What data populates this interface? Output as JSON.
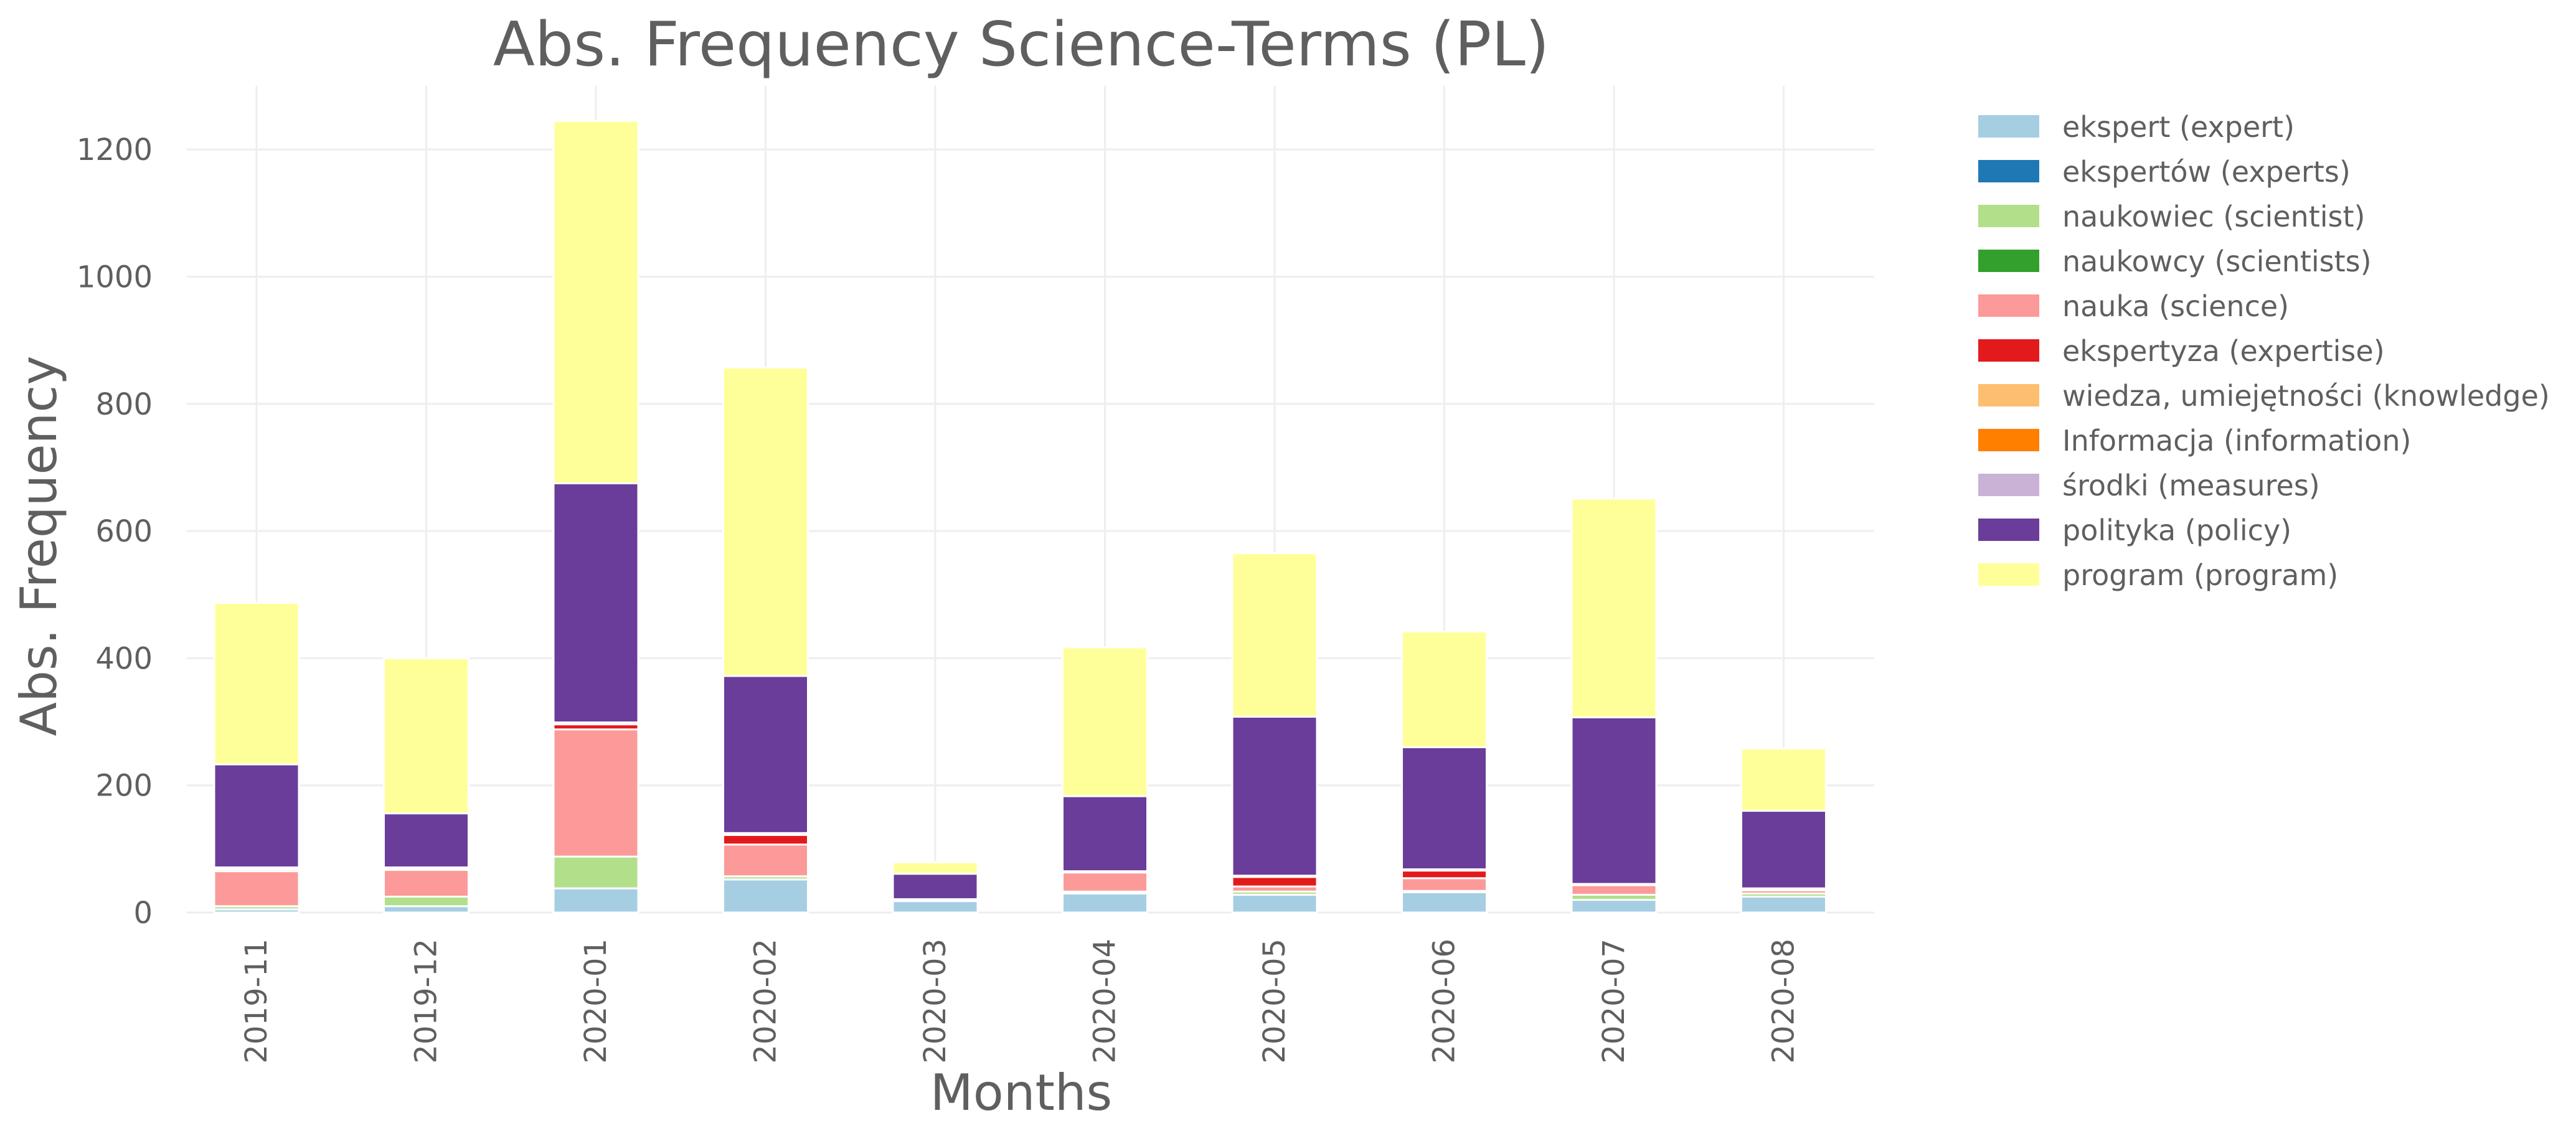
{
  "chart_data": {
    "type": "bar",
    "stacked": true,
    "title": "Abs. Frequency Science-Terms (PL)",
    "xlabel": "Months",
    "ylabel": "Abs. Frequency",
    "ylim": [
      0,
      1300
    ],
    "yticks": [
      0,
      200,
      400,
      600,
      800,
      1000,
      1200
    ],
    "grid": true,
    "legend_position": "outside-right",
    "categories": [
      "2019-11",
      "2019-12",
      "2020-01",
      "2020-02",
      "2020-03",
      "2020-04",
      "2020-05",
      "2020-06",
      "2020-07",
      "2020-08"
    ],
    "series": [
      {
        "name": "ekspert (expert)",
        "color": "#a6cee3",
        "values": [
          5,
          10,
          38,
          52,
          18,
          30,
          28,
          32,
          20,
          25
        ]
      },
      {
        "name": "ekspertów (experts)",
        "color": "#1f78b4",
        "values": [
          0,
          0,
          0,
          0,
          0,
          0,
          0,
          0,
          0,
          0
        ]
      },
      {
        "name": "naukowiec (scientist)",
        "color": "#b2df8a",
        "values": [
          5,
          15,
          50,
          5,
          0,
          3,
          5,
          2,
          8,
          5
        ]
      },
      {
        "name": "naukowcy (scientists)",
        "color": "#33a02c",
        "values": [
          0,
          0,
          0,
          0,
          0,
          0,
          0,
          0,
          0,
          0
        ]
      },
      {
        "name": "nauka (science)",
        "color": "#fb9a99",
        "values": [
          55,
          42,
          200,
          50,
          3,
          30,
          8,
          20,
          15,
          5
        ]
      },
      {
        "name": "ekspertyza (expertise)",
        "color": "#e31a1c",
        "values": [
          3,
          2,
          8,
          15,
          0,
          0,
          15,
          12,
          0,
          0
        ]
      },
      {
        "name": "wiedza, umiejętności (knowledge)",
        "color": "#fdbf6f",
        "values": [
          0,
          0,
          0,
          0,
          0,
          0,
          0,
          0,
          0,
          0
        ]
      },
      {
        "name": "Informacja (information)",
        "color": "#ff7f00",
        "values": [
          0,
          0,
          0,
          0,
          0,
          0,
          0,
          0,
          0,
          0
        ]
      },
      {
        "name": "środki (measures)",
        "color": "#cab2d6",
        "values": [
          3,
          2,
          3,
          3,
          0,
          2,
          2,
          2,
          2,
          3
        ]
      },
      {
        "name": "polityka (policy)",
        "color": "#6a3d9a",
        "values": [
          162,
          85,
          376,
          247,
          40,
          118,
          250,
          192,
          262,
          122
        ]
      },
      {
        "name": "program (program)",
        "color": "#ffff99",
        "values": [
          254,
          244,
          570,
          485,
          18,
          234,
          257,
          182,
          344,
          98
        ]
      }
    ]
  }
}
